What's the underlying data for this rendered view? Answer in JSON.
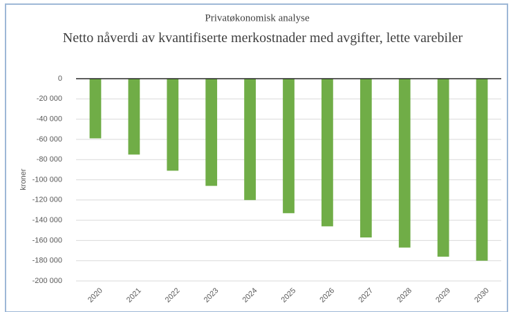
{
  "chart_data": {
    "type": "bar",
    "subtitle": "Privatøkonomisk analyse",
    "title": "Netto nåverdi av kvantifiserte merkostnader med avgifter, lette varebiler",
    "ylabel": "kroner",
    "categories": [
      "2020",
      "2021",
      "2022",
      "2023",
      "2024",
      "2025",
      "2026",
      "2027",
      "2028",
      "2029",
      "2030"
    ],
    "values": [
      -59000,
      -75000,
      -91000,
      -106000,
      -120000,
      -133000,
      -146000,
      -157000,
      -167000,
      -176000,
      -180000
    ],
    "color": "#70ad47",
    "ylim": [
      -200000,
      0
    ],
    "yticks": [
      0,
      {
        "value": -20000,
        "label": "-20 000"
      },
      {
        "value": -40000,
        "label": "-40 000"
      },
      {
        "value": -60000,
        "label": "-60 000"
      },
      {
        "value": -80000,
        "label": "-80 000"
      },
      {
        "value": -100000,
        "label": "-100 000"
      },
      {
        "value": -120000,
        "label": "-120 000"
      },
      {
        "value": -140000,
        "label": "-140 000"
      },
      {
        "value": -160000,
        "label": "-160 000"
      },
      {
        "value": -180000,
        "label": "-180 000"
      },
      {
        "value": -200000,
        "label": "-200 000"
      }
    ],
    "grid": true
  }
}
